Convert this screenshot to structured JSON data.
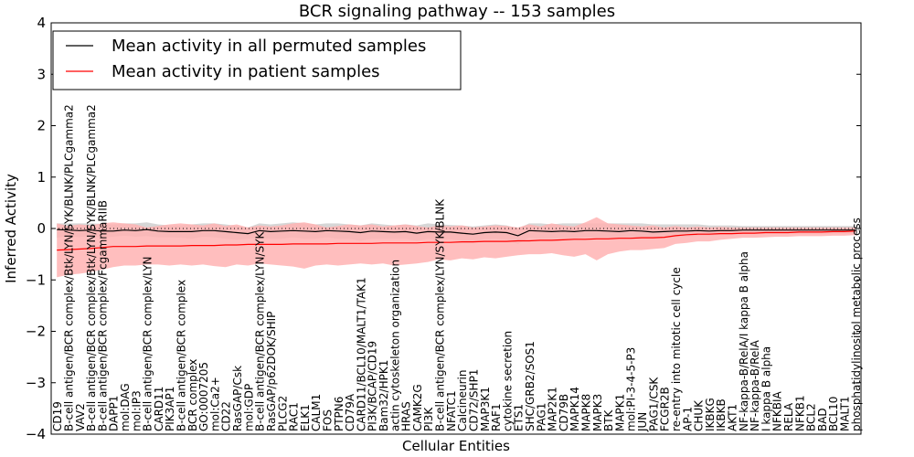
{
  "chart_data": {
    "type": "line",
    "title": "BCR signaling pathway -- 153 samples",
    "xlabel": "Cellular Entities",
    "ylabel": "Inferred Activity",
    "ylim": [
      -4,
      4
    ],
    "yticks": [
      -4,
      -3,
      -2,
      -1,
      0,
      1,
      2,
      3,
      4
    ],
    "reference_line": 0,
    "legend_position": "top-left",
    "categories": [
      "CD19",
      "B-cell antigen/BCR complex/Btk/LYN/SYK/BLNK/PLCgamma2",
      "VAV2",
      "B-cell antigen/BCR complex/Btk/LYN/SYK/BLNK/PLCgamma2",
      "B-cell antigen/BCR complex/FcgammaRIIB",
      "DAPP1",
      "mol:DAG",
      "mol:IP3",
      "B-cell antigen/BCR complex/LYN",
      "CARD11",
      "PIK3AP1",
      "B-cell antigen/BCR complex",
      "BCR complex",
      "GO:0007205",
      "mol:Ca2+",
      "CD22",
      "RasGAP/Csk",
      "mol:GDP",
      "B-cell antigen/BCR complex/LYN/SYK",
      "RasGAP/p62DOK/SHIP",
      "PLCG2",
      "RAC1",
      "ELK1",
      "CALM1",
      "FOS",
      "PTPN6",
      "CD79A",
      "CARD11/BCL10/MALT1/TAK1",
      "PI3K/BCAP/CD19",
      "Bam32/HPK1",
      "actin cytoskeleton organization",
      "HRAS",
      "CAMK2G",
      "PI3K",
      "B-cell antigen/BCR complex/LYN/SYK/BLNK",
      "NFATC1",
      "Calcineurin",
      "CD72/SHP1",
      "MAP3K1",
      "RAF1",
      "cytokine secretion",
      "ETS1",
      "SHC/GRB2/SOS1",
      "PAG1",
      "MAP2K1",
      "CD79B",
      "MAPK14",
      "MAPK8",
      "MAPK3",
      "BTK",
      "MAPK1",
      "mol:PI-3-4-5-P3",
      "JUN",
      "PAG1/CSK",
      "FCGR2B",
      "re-entry into mitotic cell cycle",
      "AP-1",
      "CHUK",
      "IKBKG",
      "IKBKB",
      "AKT1",
      "NF-kappa-B/RelA/I kappa B alpha",
      "NF-kappa-B/RelA",
      "I kappa B alpha",
      "NFKBIA",
      "RELA",
      "NFKB1",
      "BCL2",
      "BAD",
      "BCL10",
      "MALT1",
      "phosphatidylinositol metabolic process"
    ],
    "series": [
      {
        "name": "Mean activity in all permuted samples",
        "color": "#000000",
        "band_color": "#c8c8c8",
        "values": [
          -0.02,
          -0.03,
          -0.04,
          -0.03,
          -0.05,
          -0.05,
          -0.03,
          -0.04,
          -0.02,
          -0.05,
          -0.06,
          -0.06,
          -0.06,
          -0.04,
          -0.04,
          -0.06,
          -0.08,
          -0.1,
          -0.04,
          -0.06,
          -0.05,
          -0.04,
          -0.05,
          -0.06,
          -0.04,
          -0.05,
          -0.06,
          -0.08,
          -0.05,
          -0.06,
          -0.07,
          -0.06,
          -0.09,
          -0.06,
          -0.07,
          -0.07,
          -0.09,
          -0.11,
          -0.08,
          -0.07,
          -0.08,
          -0.14,
          -0.04,
          -0.05,
          -0.06,
          -0.05,
          -0.06,
          -0.04,
          -0.04,
          -0.05,
          -0.06,
          -0.04,
          -0.05,
          -0.07,
          -0.06,
          -0.05,
          -0.05,
          -0.04,
          -0.05,
          -0.04,
          -0.04,
          -0.03,
          -0.03,
          -0.03,
          -0.03,
          -0.03,
          -0.03,
          -0.03,
          -0.03,
          -0.03,
          -0.03,
          -0.03
        ],
        "lower": [
          -0.18,
          -0.15,
          -0.17,
          -0.14,
          -0.18,
          -0.16,
          -0.14,
          -0.16,
          -0.15,
          -0.17,
          -0.17,
          -0.18,
          -0.2,
          -0.16,
          -0.17,
          -0.2,
          -0.22,
          -0.2,
          -0.18,
          -0.2,
          -0.2,
          -0.17,
          -0.2,
          -0.2,
          -0.17,
          -0.2,
          -0.2,
          -0.24,
          -0.2,
          -0.2,
          -0.2,
          -0.2,
          -0.24,
          -0.2,
          -0.22,
          -0.21,
          -0.24,
          -0.26,
          -0.21,
          -0.2,
          -0.22,
          -0.3,
          -0.18,
          -0.2,
          -0.2,
          -0.18,
          -0.2,
          -0.17,
          -0.18,
          -0.18,
          -0.2,
          -0.17,
          -0.18,
          -0.2,
          -0.18,
          -0.17,
          -0.16,
          -0.14,
          -0.14,
          -0.12,
          -0.12,
          -0.1,
          -0.1,
          -0.1,
          -0.1,
          -0.1,
          -0.1,
          -0.1,
          -0.1,
          -0.1,
          -0.1,
          -0.1
        ],
        "upper": [
          0.1,
          0.1,
          0.1,
          0.1,
          0.09,
          0.08,
          0.1,
          0.1,
          0.12,
          0.08,
          0.06,
          0.06,
          0.08,
          0.1,
          0.1,
          0.08,
          0.05,
          0.02,
          0.1,
          0.08,
          0.1,
          0.12,
          0.1,
          0.08,
          0.1,
          0.1,
          0.08,
          0.06,
          0.1,
          0.08,
          0.06,
          0.08,
          0.06,
          0.1,
          0.08,
          0.07,
          0.06,
          0.04,
          0.06,
          0.08,
          0.06,
          0.0,
          0.1,
          0.1,
          0.08,
          0.1,
          0.1,
          0.1,
          0.1,
          0.1,
          0.1,
          0.1,
          0.1,
          0.08,
          0.08,
          0.08,
          0.08,
          0.08,
          0.06,
          0.06,
          0.06,
          0.05,
          0.05,
          0.05,
          0.05,
          0.05,
          0.05,
          0.05,
          0.05,
          0.05,
          0.05,
          0.05
        ]
      },
      {
        "name": "Mean activity in patient samples",
        "color": "#ff0000",
        "band_color": "#ffb3b3",
        "values": [
          -0.42,
          -0.41,
          -0.4,
          -0.39,
          -0.37,
          -0.35,
          -0.35,
          -0.35,
          -0.34,
          -0.34,
          -0.34,
          -0.34,
          -0.33,
          -0.33,
          -0.33,
          -0.32,
          -0.32,
          -0.31,
          -0.31,
          -0.31,
          -0.31,
          -0.3,
          -0.3,
          -0.3,
          -0.3,
          -0.29,
          -0.29,
          -0.29,
          -0.29,
          -0.28,
          -0.28,
          -0.28,
          -0.28,
          -0.27,
          -0.27,
          -0.27,
          -0.26,
          -0.26,
          -0.25,
          -0.25,
          -0.25,
          -0.24,
          -0.24,
          -0.23,
          -0.23,
          -0.22,
          -0.21,
          -0.21,
          -0.2,
          -0.2,
          -0.19,
          -0.19,
          -0.18,
          -0.18,
          -0.17,
          -0.14,
          -0.12,
          -0.11,
          -0.11,
          -0.1,
          -0.1,
          -0.09,
          -0.09,
          -0.08,
          -0.08,
          -0.08,
          -0.07,
          -0.07,
          -0.07,
          -0.06,
          -0.06,
          -0.05
        ],
        "lower": [
          -0.95,
          -0.9,
          -0.88,
          -0.85,
          -0.8,
          -0.75,
          -0.72,
          -0.72,
          -0.7,
          -0.7,
          -0.72,
          -0.7,
          -0.72,
          -0.7,
          -0.73,
          -0.75,
          -0.7,
          -0.72,
          -0.68,
          -0.7,
          -0.72,
          -0.74,
          -0.78,
          -0.72,
          -0.7,
          -0.72,
          -0.7,
          -0.68,
          -0.7,
          -0.68,
          -0.72,
          -0.7,
          -0.68,
          -0.65,
          -0.6,
          -0.62,
          -0.58,
          -0.6,
          -0.56,
          -0.58,
          -0.55,
          -0.52,
          -0.5,
          -0.5,
          -0.48,
          -0.52,
          -0.55,
          -0.5,
          -0.62,
          -0.5,
          -0.45,
          -0.42,
          -0.42,
          -0.4,
          -0.38,
          -0.3,
          -0.28,
          -0.25,
          -0.25,
          -0.22,
          -0.2,
          -0.18,
          -0.18,
          -0.17,
          -0.16,
          -0.16,
          -0.15,
          -0.15,
          -0.15,
          -0.14,
          -0.14,
          -0.13
        ],
        "upper": [
          0.1,
          0.05,
          0.08,
          0.06,
          0.1,
          0.12,
          0.1,
          0.08,
          0.02,
          0.05,
          0.08,
          0.1,
          0.08,
          0.06,
          0.1,
          0.05,
          0.08,
          0.02,
          0.06,
          0.04,
          0.06,
          0.1,
          0.12,
          0.08,
          0.02,
          0.05,
          0.08,
          0.06,
          0.08,
          0.04,
          0.06,
          0.08,
          0.05,
          0.02,
          0.06,
          0.04,
          0.06,
          0.02,
          0.04,
          0.06,
          0.05,
          0.02,
          0.08,
          0.04,
          0.1,
          0.06,
          0.04,
          0.12,
          0.22,
          0.1,
          0.08,
          0.06,
          0.04,
          0.06,
          0.02,
          0.05,
          0.02,
          0.04,
          0.02,
          0.03,
          0.02,
          0.02,
          0.02,
          0.02,
          0.02,
          0.02,
          0.02,
          0.02,
          0.02,
          0.02,
          0.02,
          0.02
        ]
      }
    ]
  }
}
